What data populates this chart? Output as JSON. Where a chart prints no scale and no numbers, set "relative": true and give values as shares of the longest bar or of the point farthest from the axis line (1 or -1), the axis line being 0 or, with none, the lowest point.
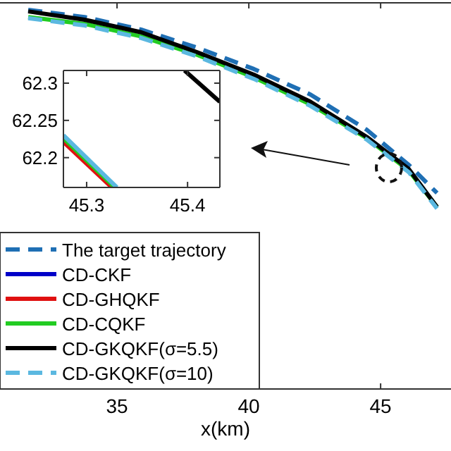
{
  "chart_data": [
    {
      "type": "line",
      "relative": true,
      "xlabel": "x(km)",
      "xlim": [
        30.56,
        47.67
      ],
      "xticks": [
        35,
        40,
        45
      ],
      "legend": "bottom left",
      "grid": false,
      "tick_labels": "x",
      "series": [
        {
          "name": "The target trajectory",
          "color": "#1f6fb4",
          "line_style": "dashed",
          "x": [
            31.63,
            33.77,
            35.91,
            38.05,
            40.19,
            42.33,
            44.47,
            46.07,
            47.14
          ],
          "values": [
            1.0,
            0.981,
            0.948,
            0.9,
            0.844,
            0.777,
            0.684,
            0.591,
            0.517
          ]
        },
        {
          "name": "CD-CKF",
          "color": "#0000c8",
          "line_style": "solid"
        },
        {
          "name": "CD-GHQKF",
          "color": "#e01010",
          "line_style": "solid"
        },
        {
          "name": "CD-CQKF",
          "color": "#22cc22",
          "line_style": "solid",
          "x": [
            31.63,
            33.77,
            35.91,
            38.05,
            40.19,
            42.33,
            44.47,
            46.07,
            47.14
          ],
          "values": [
            0.981,
            0.963,
            0.93,
            0.881,
            0.822,
            0.751,
            0.662,
            0.576,
            0.48
          ]
        },
        {
          "name": "CD-GKQKF(σ=5.5)",
          "color": "#000000",
          "line_style": "solid",
          "x": [
            31.63,
            33.77,
            35.91,
            38.05,
            40.19,
            42.33,
            44.47,
            46.07,
            47.14
          ],
          "values": [
            0.996,
            0.974,
            0.941,
            0.888,
            0.829,
            0.758,
            0.665,
            0.58,
            0.48
          ]
        },
        {
          "name": "CD-GKQKF(σ=10)",
          "color": "#5bb8e0",
          "line_style": "dashed",
          "x": [
            31.63,
            33.77,
            35.91,
            38.05,
            40.19,
            42.33,
            44.47,
            46.07,
            47.14
          ],
          "values": [
            0.978,
            0.959,
            0.926,
            0.877,
            0.818,
            0.747,
            0.658,
            0.572,
            0.476
          ]
        }
      ]
    },
    {
      "type": "line",
      "xlim": [
        45.277,
        45.432
      ],
      "ylim": [
        62.16,
        62.317
      ],
      "xticks": [
        45.3,
        45.4
      ],
      "yticks": [
        62.2,
        62.25,
        62.3
      ],
      "grid": false,
      "series": [
        {
          "color": "#e01010",
          "line_style": "solid",
          "x": [
            45.277,
            45.325
          ],
          "values": [
            62.221,
            62.16
          ]
        },
        {
          "color": "#22cc22",
          "line_style": "solid",
          "x": [
            45.277,
            45.328
          ],
          "values": [
            62.226,
            62.16
          ]
        },
        {
          "color": "#5bb8e0",
          "line_style": "solid",
          "x": [
            45.277,
            45.33
          ],
          "values": [
            62.23,
            62.16
          ]
        },
        {
          "color": "#000000",
          "line_style": "solid",
          "x": [
            45.397,
            45.432
          ],
          "values": [
            62.317,
            62.275
          ]
        }
      ]
    }
  ]
}
